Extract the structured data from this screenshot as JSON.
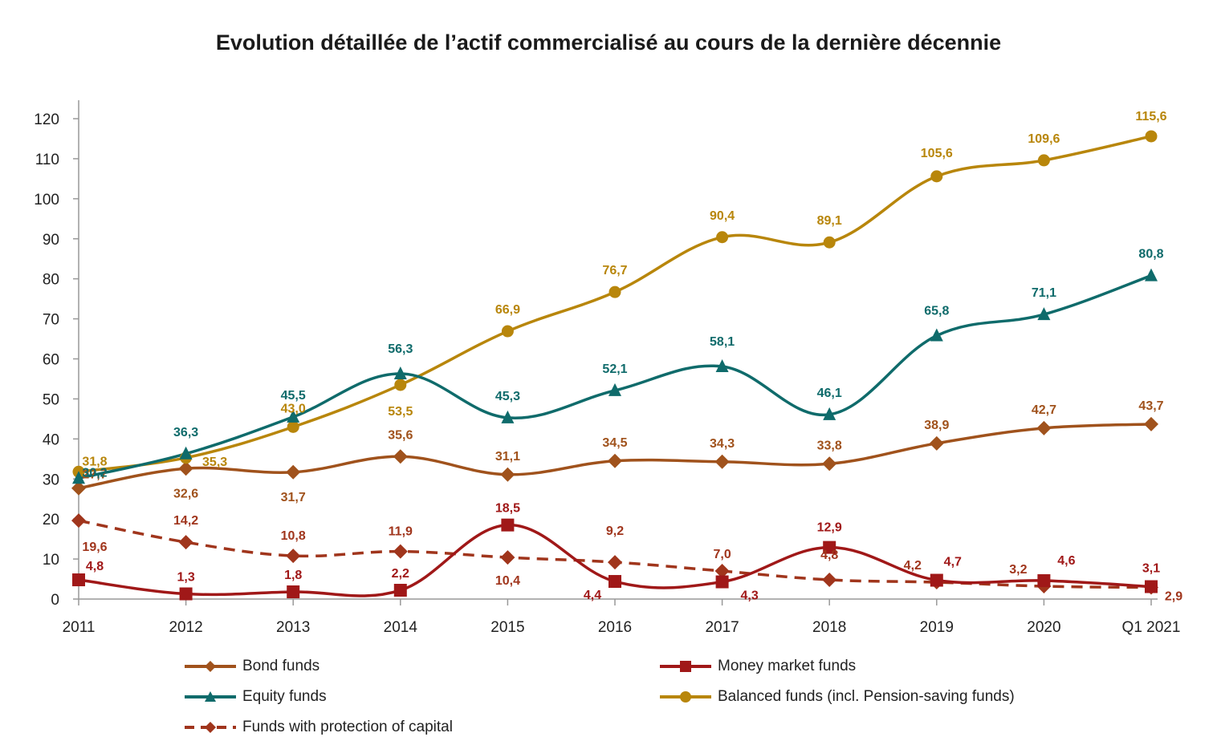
{
  "chart_data": {
    "type": "line",
    "title": "Evolution détaillée de l’actif commercialisé au cours de la dernière décennie",
    "xlabel": "",
    "ylabel": "",
    "ylim": [
      0,
      120
    ],
    "yticks": [
      0,
      10,
      20,
      30,
      40,
      50,
      60,
      70,
      80,
      90,
      100,
      110,
      120
    ],
    "categories": [
      "2011",
      "2012",
      "2013",
      "2014",
      "2015",
      "2016",
      "2017",
      "2018",
      "2019",
      "2020",
      "Q1 2021"
    ],
    "grid": false,
    "legend_position": "bottom",
    "series": [
      {
        "name": "Bond funds",
        "color": "#a0521c",
        "marker": "diamond",
        "dash": false,
        "values": [
          27.7,
          32.6,
          31.7,
          35.6,
          31.1,
          34.5,
          34.3,
          33.8,
          38.9,
          42.7,
          43.7
        ],
        "labels": [
          "27,7",
          "32,6",
          "31,7",
          "35,6",
          "31,1",
          "34,5",
          "34,3",
          "33,8",
          "38,9",
          "42,7",
          "43,7"
        ]
      },
      {
        "name": "Money market funds",
        "color": "#a01818",
        "marker": "square",
        "dash": false,
        "values": [
          4.8,
          1.3,
          1.8,
          2.2,
          18.5,
          4.4,
          4.3,
          12.9,
          4.7,
          4.6,
          3.1
        ],
        "labels": [
          "4,8",
          "1,3",
          "1,8",
          "2,2",
          "18,5",
          "4,4",
          "4,3",
          "12,9",
          "4,7",
          "4,6",
          "3,1"
        ]
      },
      {
        "name": "Equity funds",
        "color": "#0f6b6b",
        "marker": "triangle",
        "dash": false,
        "values": [
          30.2,
          36.3,
          45.5,
          56.3,
          45.3,
          52.1,
          58.1,
          46.1,
          65.8,
          71.1,
          80.8
        ],
        "labels": [
          "30,2",
          "36,3",
          "45,5",
          "56,3",
          "45,3",
          "52,1",
          "58,1",
          "46,1",
          "65,8",
          "71,1",
          "80,8"
        ]
      },
      {
        "name": "Balanced funds (incl. Pension-saving funds)",
        "color": "#b8860b",
        "marker": "circle",
        "dash": false,
        "values": [
          31.8,
          35.3,
          43.0,
          53.5,
          66.9,
          76.7,
          90.4,
          89.1,
          105.6,
          109.6,
          115.6
        ],
        "labels": [
          "31,8",
          "35,3",
          "43,0",
          "53,5",
          "66,9",
          "76,7",
          "90,4",
          "89,1",
          "105,6",
          "109,6",
          "115,6"
        ]
      },
      {
        "name": "Funds with protection of capital",
        "color": "#a0351c",
        "marker": "diamond",
        "dash": true,
        "values": [
          19.6,
          14.2,
          10.8,
          11.9,
          10.4,
          9.2,
          7.0,
          4.8,
          4.2,
          3.2,
          2.9
        ],
        "labels": [
          "19,6",
          "14,2",
          "10,8",
          "11,9",
          "10,4",
          "9,2",
          "7,0",
          "4,8",
          "4,2",
          "3,2",
          "2,9"
        ]
      }
    ]
  }
}
